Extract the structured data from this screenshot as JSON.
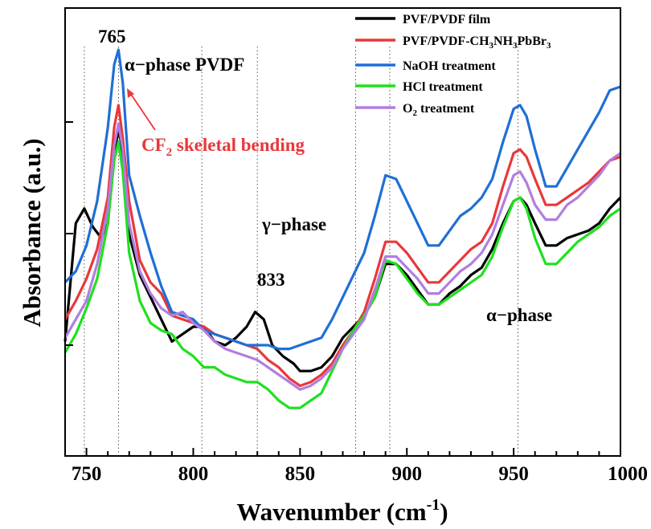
{
  "chart_data": {
    "type": "line",
    "xlabel": "Wavenumber (cm",
    "xlabel_sup": "-1",
    "xlabel_close": ")",
    "ylabel": "Absorbance (a.u.)",
    "xlim": [
      740,
      1000
    ],
    "x_ticks": [
      "750",
      "800",
      "850",
      "900",
      "950",
      "1000"
    ],
    "grid": "dotted vertical reference lines",
    "reference_lines": [
      749,
      765,
      804,
      830,
      876,
      892,
      952
    ],
    "legend_position": "top-right",
    "annotations": {
      "peak765": "765",
      "alpha_pvdf": "α−phase PVDF",
      "cf2_main": "CF",
      "cf2_sub": "2",
      "cf2_rest": " skeletal bending",
      "gamma": "γ−phase",
      "peak833": "833",
      "alpha": "α−phase"
    },
    "series": [
      {
        "name": "PVF/PVDF film",
        "color": "#000000",
        "points": [
          [
            740,
            0.21
          ],
          [
            745,
            0.53
          ],
          [
            749,
            0.57
          ],
          [
            753,
            0.52
          ],
          [
            757,
            0.49
          ],
          [
            760,
            0.53
          ],
          [
            763,
            0.71
          ],
          [
            765,
            0.79
          ],
          [
            767,
            0.72
          ],
          [
            770,
            0.5
          ],
          [
            775,
            0.39
          ],
          [
            780,
            0.33
          ],
          [
            785,
            0.27
          ],
          [
            790,
            0.21
          ],
          [
            795,
            0.23
          ],
          [
            800,
            0.25
          ],
          [
            805,
            0.25
          ],
          [
            810,
            0.21
          ],
          [
            815,
            0.2
          ],
          [
            820,
            0.22
          ],
          [
            825,
            0.25
          ],
          [
            829,
            0.29
          ],
          [
            833,
            0.27
          ],
          [
            837,
            0.2
          ],
          [
            842,
            0.17
          ],
          [
            847,
            0.15
          ],
          [
            850,
            0.13
          ],
          [
            855,
            0.13
          ],
          [
            860,
            0.14
          ],
          [
            865,
            0.17
          ],
          [
            870,
            0.22
          ],
          [
            875,
            0.25
          ],
          [
            880,
            0.28
          ],
          [
            885,
            0.33
          ],
          [
            890,
            0.42
          ],
          [
            895,
            0.42
          ],
          [
            900,
            0.39
          ],
          [
            905,
            0.35
          ],
          [
            910,
            0.31
          ],
          [
            915,
            0.31
          ],
          [
            920,
            0.34
          ],
          [
            925,
            0.36
          ],
          [
            930,
            0.39
          ],
          [
            935,
            0.41
          ],
          [
            940,
            0.46
          ],
          [
            945,
            0.53
          ],
          [
            950,
            0.59
          ],
          [
            953,
            0.6
          ],
          [
            956,
            0.58
          ],
          [
            960,
            0.53
          ],
          [
            965,
            0.47
          ],
          [
            970,
            0.47
          ],
          [
            975,
            0.49
          ],
          [
            980,
            0.5
          ],
          [
            985,
            0.51
          ],
          [
            990,
            0.53
          ],
          [
            995,
            0.57
          ],
          [
            1000,
            0.6
          ]
        ]
      },
      {
        "name": "PVF/PVDF-CH3NH3PbBr3",
        "name_parts": {
          "a": "PVF/PVDF-CH",
          "s1": "3",
          "b": "NH",
          "s2": "3",
          "c": "PbBr",
          "s3": "3"
        },
        "color": "#e8383b",
        "points": [
          [
            740,
            0.27
          ],
          [
            745,
            0.32
          ],
          [
            750,
            0.38
          ],
          [
            755,
            0.46
          ],
          [
            760,
            0.6
          ],
          [
            763,
            0.79
          ],
          [
            765,
            0.85
          ],
          [
            767,
            0.76
          ],
          [
            770,
            0.59
          ],
          [
            775,
            0.43
          ],
          [
            780,
            0.37
          ],
          [
            785,
            0.34
          ],
          [
            790,
            0.28
          ],
          [
            795,
            0.27
          ],
          [
            800,
            0.26
          ],
          [
            805,
            0.25
          ],
          [
            810,
            0.23
          ],
          [
            815,
            0.22
          ],
          [
            820,
            0.21
          ],
          [
            825,
            0.2
          ],
          [
            830,
            0.19
          ],
          [
            835,
            0.16
          ],
          [
            840,
            0.14
          ],
          [
            845,
            0.11
          ],
          [
            850,
            0.09
          ],
          [
            855,
            0.1
          ],
          [
            860,
            0.12
          ],
          [
            865,
            0.15
          ],
          [
            870,
            0.2
          ],
          [
            875,
            0.24
          ],
          [
            880,
            0.29
          ],
          [
            885,
            0.38
          ],
          [
            890,
            0.48
          ],
          [
            895,
            0.48
          ],
          [
            900,
            0.45
          ],
          [
            905,
            0.41
          ],
          [
            910,
            0.37
          ],
          [
            915,
            0.37
          ],
          [
            920,
            0.4
          ],
          [
            925,
            0.43
          ],
          [
            930,
            0.46
          ],
          [
            935,
            0.48
          ],
          [
            940,
            0.53
          ],
          [
            945,
            0.63
          ],
          [
            950,
            0.72
          ],
          [
            953,
            0.73
          ],
          [
            956,
            0.71
          ],
          [
            960,
            0.65
          ],
          [
            965,
            0.58
          ],
          [
            970,
            0.58
          ],
          [
            975,
            0.6
          ],
          [
            980,
            0.62
          ],
          [
            985,
            0.64
          ],
          [
            990,
            0.67
          ],
          [
            995,
            0.7
          ],
          [
            1000,
            0.71
          ]
        ]
      },
      {
        "name": "NaOH treatment",
        "color": "#1f6fd6",
        "points": [
          [
            740,
            0.37
          ],
          [
            745,
            0.4
          ],
          [
            750,
            0.47
          ],
          [
            755,
            0.59
          ],
          [
            760,
            0.79
          ],
          [
            763,
            0.96
          ],
          [
            765,
            1.0
          ],
          [
            767,
            0.91
          ],
          [
            770,
            0.66
          ],
          [
            775,
            0.55
          ],
          [
            780,
            0.45
          ],
          [
            785,
            0.36
          ],
          [
            790,
            0.29
          ],
          [
            795,
            0.28
          ],
          [
            800,
            0.27
          ],
          [
            805,
            0.24
          ],
          [
            810,
            0.23
          ],
          [
            815,
            0.22
          ],
          [
            820,
            0.21
          ],
          [
            825,
            0.2
          ],
          [
            830,
            0.2
          ],
          [
            835,
            0.2
          ],
          [
            840,
            0.19
          ],
          [
            845,
            0.19
          ],
          [
            850,
            0.2
          ],
          [
            855,
            0.21
          ],
          [
            860,
            0.22
          ],
          [
            865,
            0.27
          ],
          [
            870,
            0.33
          ],
          [
            875,
            0.39
          ],
          [
            880,
            0.45
          ],
          [
            885,
            0.55
          ],
          [
            890,
            0.66
          ],
          [
            895,
            0.65
          ],
          [
            900,
            0.59
          ],
          [
            905,
            0.53
          ],
          [
            910,
            0.47
          ],
          [
            915,
            0.47
          ],
          [
            920,
            0.51
          ],
          [
            925,
            0.55
          ],
          [
            930,
            0.57
          ],
          [
            935,
            0.6
          ],
          [
            940,
            0.65
          ],
          [
            945,
            0.75
          ],
          [
            950,
            0.84
          ],
          [
            953,
            0.85
          ],
          [
            956,
            0.82
          ],
          [
            960,
            0.73
          ],
          [
            965,
            0.63
          ],
          [
            970,
            0.63
          ],
          [
            975,
            0.68
          ],
          [
            980,
            0.73
          ],
          [
            985,
            0.78
          ],
          [
            990,
            0.83
          ],
          [
            995,
            0.89
          ],
          [
            1000,
            0.9
          ]
        ]
      },
      {
        "name": "HCl treatment",
        "color": "#1fe01f",
        "points": [
          [
            740,
            0.18
          ],
          [
            745,
            0.23
          ],
          [
            750,
            0.3
          ],
          [
            755,
            0.38
          ],
          [
            760,
            0.53
          ],
          [
            763,
            0.7
          ],
          [
            765,
            0.75
          ],
          [
            767,
            0.67
          ],
          [
            770,
            0.45
          ],
          [
            775,
            0.32
          ],
          [
            780,
            0.26
          ],
          [
            785,
            0.24
          ],
          [
            790,
            0.23
          ],
          [
            795,
            0.19
          ],
          [
            800,
            0.17
          ],
          [
            805,
            0.14
          ],
          [
            810,
            0.14
          ],
          [
            815,
            0.12
          ],
          [
            820,
            0.11
          ],
          [
            825,
            0.1
          ],
          [
            830,
            0.1
          ],
          [
            835,
            0.08
          ],
          [
            840,
            0.05
          ],
          [
            845,
            0.03
          ],
          [
            850,
            0.03
          ],
          [
            855,
            0.05
          ],
          [
            860,
            0.07
          ],
          [
            865,
            0.13
          ],
          [
            870,
            0.19
          ],
          [
            875,
            0.24
          ],
          [
            880,
            0.28
          ],
          [
            885,
            0.33
          ],
          [
            890,
            0.43
          ],
          [
            895,
            0.42
          ],
          [
            900,
            0.38
          ],
          [
            905,
            0.34
          ],
          [
            910,
            0.31
          ],
          [
            915,
            0.31
          ],
          [
            920,
            0.33
          ],
          [
            925,
            0.35
          ],
          [
            930,
            0.37
          ],
          [
            935,
            0.39
          ],
          [
            940,
            0.44
          ],
          [
            945,
            0.52
          ],
          [
            950,
            0.59
          ],
          [
            953,
            0.6
          ],
          [
            956,
            0.57
          ],
          [
            960,
            0.49
          ],
          [
            965,
            0.42
          ],
          [
            970,
            0.42
          ],
          [
            975,
            0.45
          ],
          [
            980,
            0.48
          ],
          [
            985,
            0.5
          ],
          [
            990,
            0.52
          ],
          [
            995,
            0.55
          ],
          [
            1000,
            0.57
          ]
        ]
      },
      {
        "name": "O2 treatment",
        "name_parts": {
          "a": "O",
          "s1": "2",
          "b": " treatment"
        },
        "color": "#b07ee0",
        "points": [
          [
            740,
            0.22
          ],
          [
            745,
            0.27
          ],
          [
            750,
            0.32
          ],
          [
            755,
            0.42
          ],
          [
            760,
            0.57
          ],
          [
            763,
            0.74
          ],
          [
            765,
            0.8
          ],
          [
            767,
            0.73
          ],
          [
            770,
            0.53
          ],
          [
            775,
            0.4
          ],
          [
            780,
            0.34
          ],
          [
            785,
            0.3
          ],
          [
            790,
            0.28
          ],
          [
            795,
            0.29
          ],
          [
            800,
            0.26
          ],
          [
            805,
            0.24
          ],
          [
            810,
            0.21
          ],
          [
            815,
            0.19
          ],
          [
            820,
            0.18
          ],
          [
            825,
            0.17
          ],
          [
            830,
            0.16
          ],
          [
            835,
            0.14
          ],
          [
            840,
            0.12
          ],
          [
            845,
            0.1
          ],
          [
            850,
            0.08
          ],
          [
            855,
            0.09
          ],
          [
            860,
            0.11
          ],
          [
            865,
            0.14
          ],
          [
            870,
            0.19
          ],
          [
            875,
            0.23
          ],
          [
            880,
            0.27
          ],
          [
            885,
            0.35
          ],
          [
            890,
            0.44
          ],
          [
            895,
            0.44
          ],
          [
            900,
            0.41
          ],
          [
            905,
            0.38
          ],
          [
            910,
            0.34
          ],
          [
            915,
            0.34
          ],
          [
            920,
            0.37
          ],
          [
            925,
            0.4
          ],
          [
            930,
            0.42
          ],
          [
            935,
            0.45
          ],
          [
            940,
            0.5
          ],
          [
            945,
            0.58
          ],
          [
            950,
            0.66
          ],
          [
            953,
            0.67
          ],
          [
            956,
            0.64
          ],
          [
            960,
            0.58
          ],
          [
            965,
            0.54
          ],
          [
            970,
            0.54
          ],
          [
            975,
            0.58
          ],
          [
            980,
            0.6
          ],
          [
            985,
            0.63
          ],
          [
            990,
            0.66
          ],
          [
            995,
            0.7
          ],
          [
            1000,
            0.72
          ]
        ]
      }
    ]
  }
}
